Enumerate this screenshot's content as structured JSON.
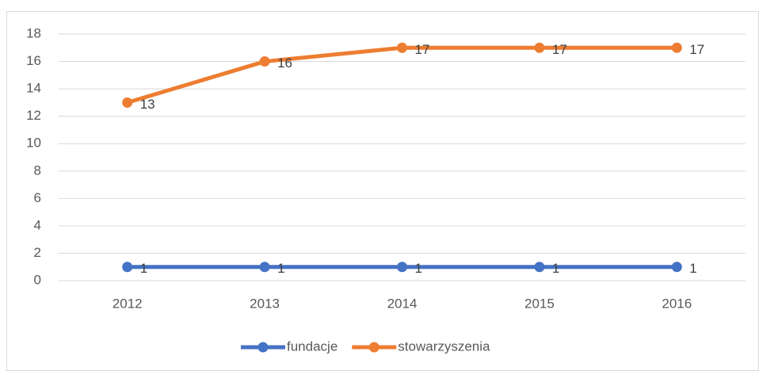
{
  "chart_data": {
    "type": "line",
    "categories": [
      "2012",
      "2013",
      "2014",
      "2015",
      "2016"
    ],
    "series": [
      {
        "name": "fundacje",
        "color": "#4472c4",
        "values": [
          1,
          1,
          1,
          1,
          1
        ]
      },
      {
        "name": "stowarzyszenia",
        "color": "#ed7d31",
        "values": [
          13,
          16,
          17,
          17,
          17
        ]
      }
    ],
    "ylim": [
      0,
      18
    ],
    "yticks": [
      0,
      2,
      4,
      6,
      8,
      10,
      12,
      14,
      16,
      18
    ],
    "grid": true,
    "legend": "bottom"
  }
}
